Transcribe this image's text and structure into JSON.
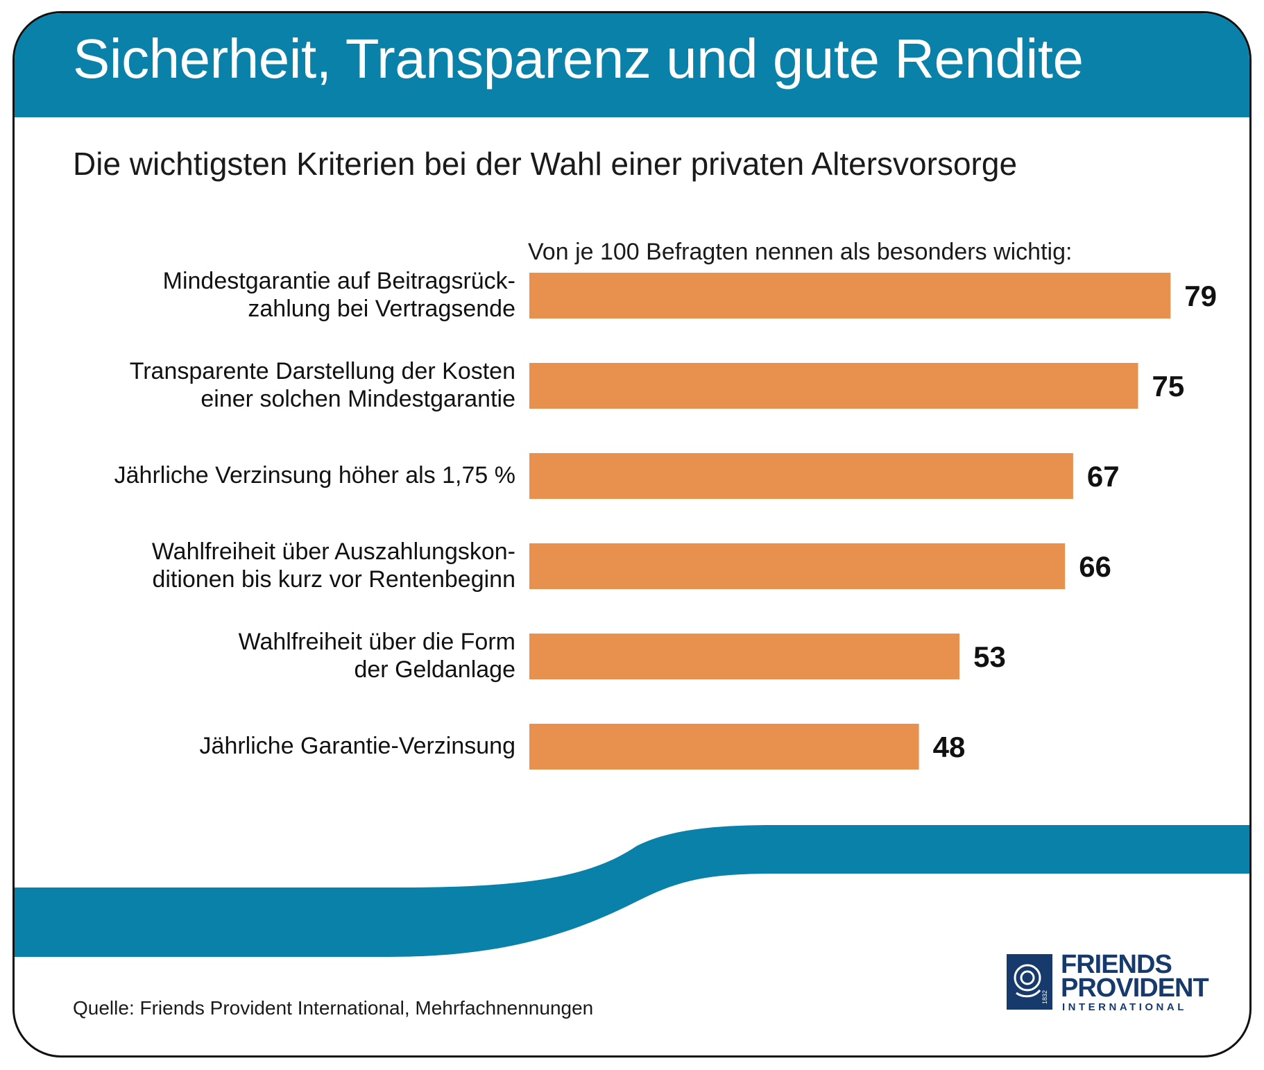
{
  "header": {
    "title": "Sicherheit, Transparenz und gute Rendite",
    "subtitle": "Die wichtigsten Kriterien bei der Wahl einer privaten Altersvorsorge"
  },
  "chart_data": {
    "type": "bar",
    "orientation": "horizontal",
    "title": "Die wichtigsten Kriterien bei der Wahl einer privaten Altersvorsorge",
    "unit_note": "Von je 100 Befragten nennen als besonders wichtig:",
    "categories": [
      [
        "Mindestgarantie auf Beitragsrück-",
        "zahlung bei Vertragsende"
      ],
      [
        "Transparente Darstellung der Kosten",
        "einer solchen Mindestgarantie"
      ],
      [
        "Jährliche Verzinsung höher als 1,75 %"
      ],
      [
        "Wahlfreiheit über Auszahlungskon-",
        "ditionen bis kurz vor Rentenbeginn"
      ],
      [
        "Wahlfreiheit über die Form",
        "der Geldanlage"
      ],
      [
        "Jährliche Garantie-Verzinsung"
      ]
    ],
    "values": [
      79,
      75,
      67,
      66,
      53,
      48
    ],
    "xlim": [
      0,
      100
    ],
    "bar_color": "#e8914f",
    "grid": false
  },
  "footer": {
    "source": "Quelle: Friends Provident International, Mehrfachnennungen"
  },
  "logo": {
    "line1": "FRIENDS",
    "line2": "PROVIDENT",
    "line3": "INTERNATIONAL",
    "year": "1832"
  },
  "colors": {
    "brand_blue": "#0a81a8",
    "bar_orange": "#e8914f",
    "logo_navy": "#163a6b"
  }
}
